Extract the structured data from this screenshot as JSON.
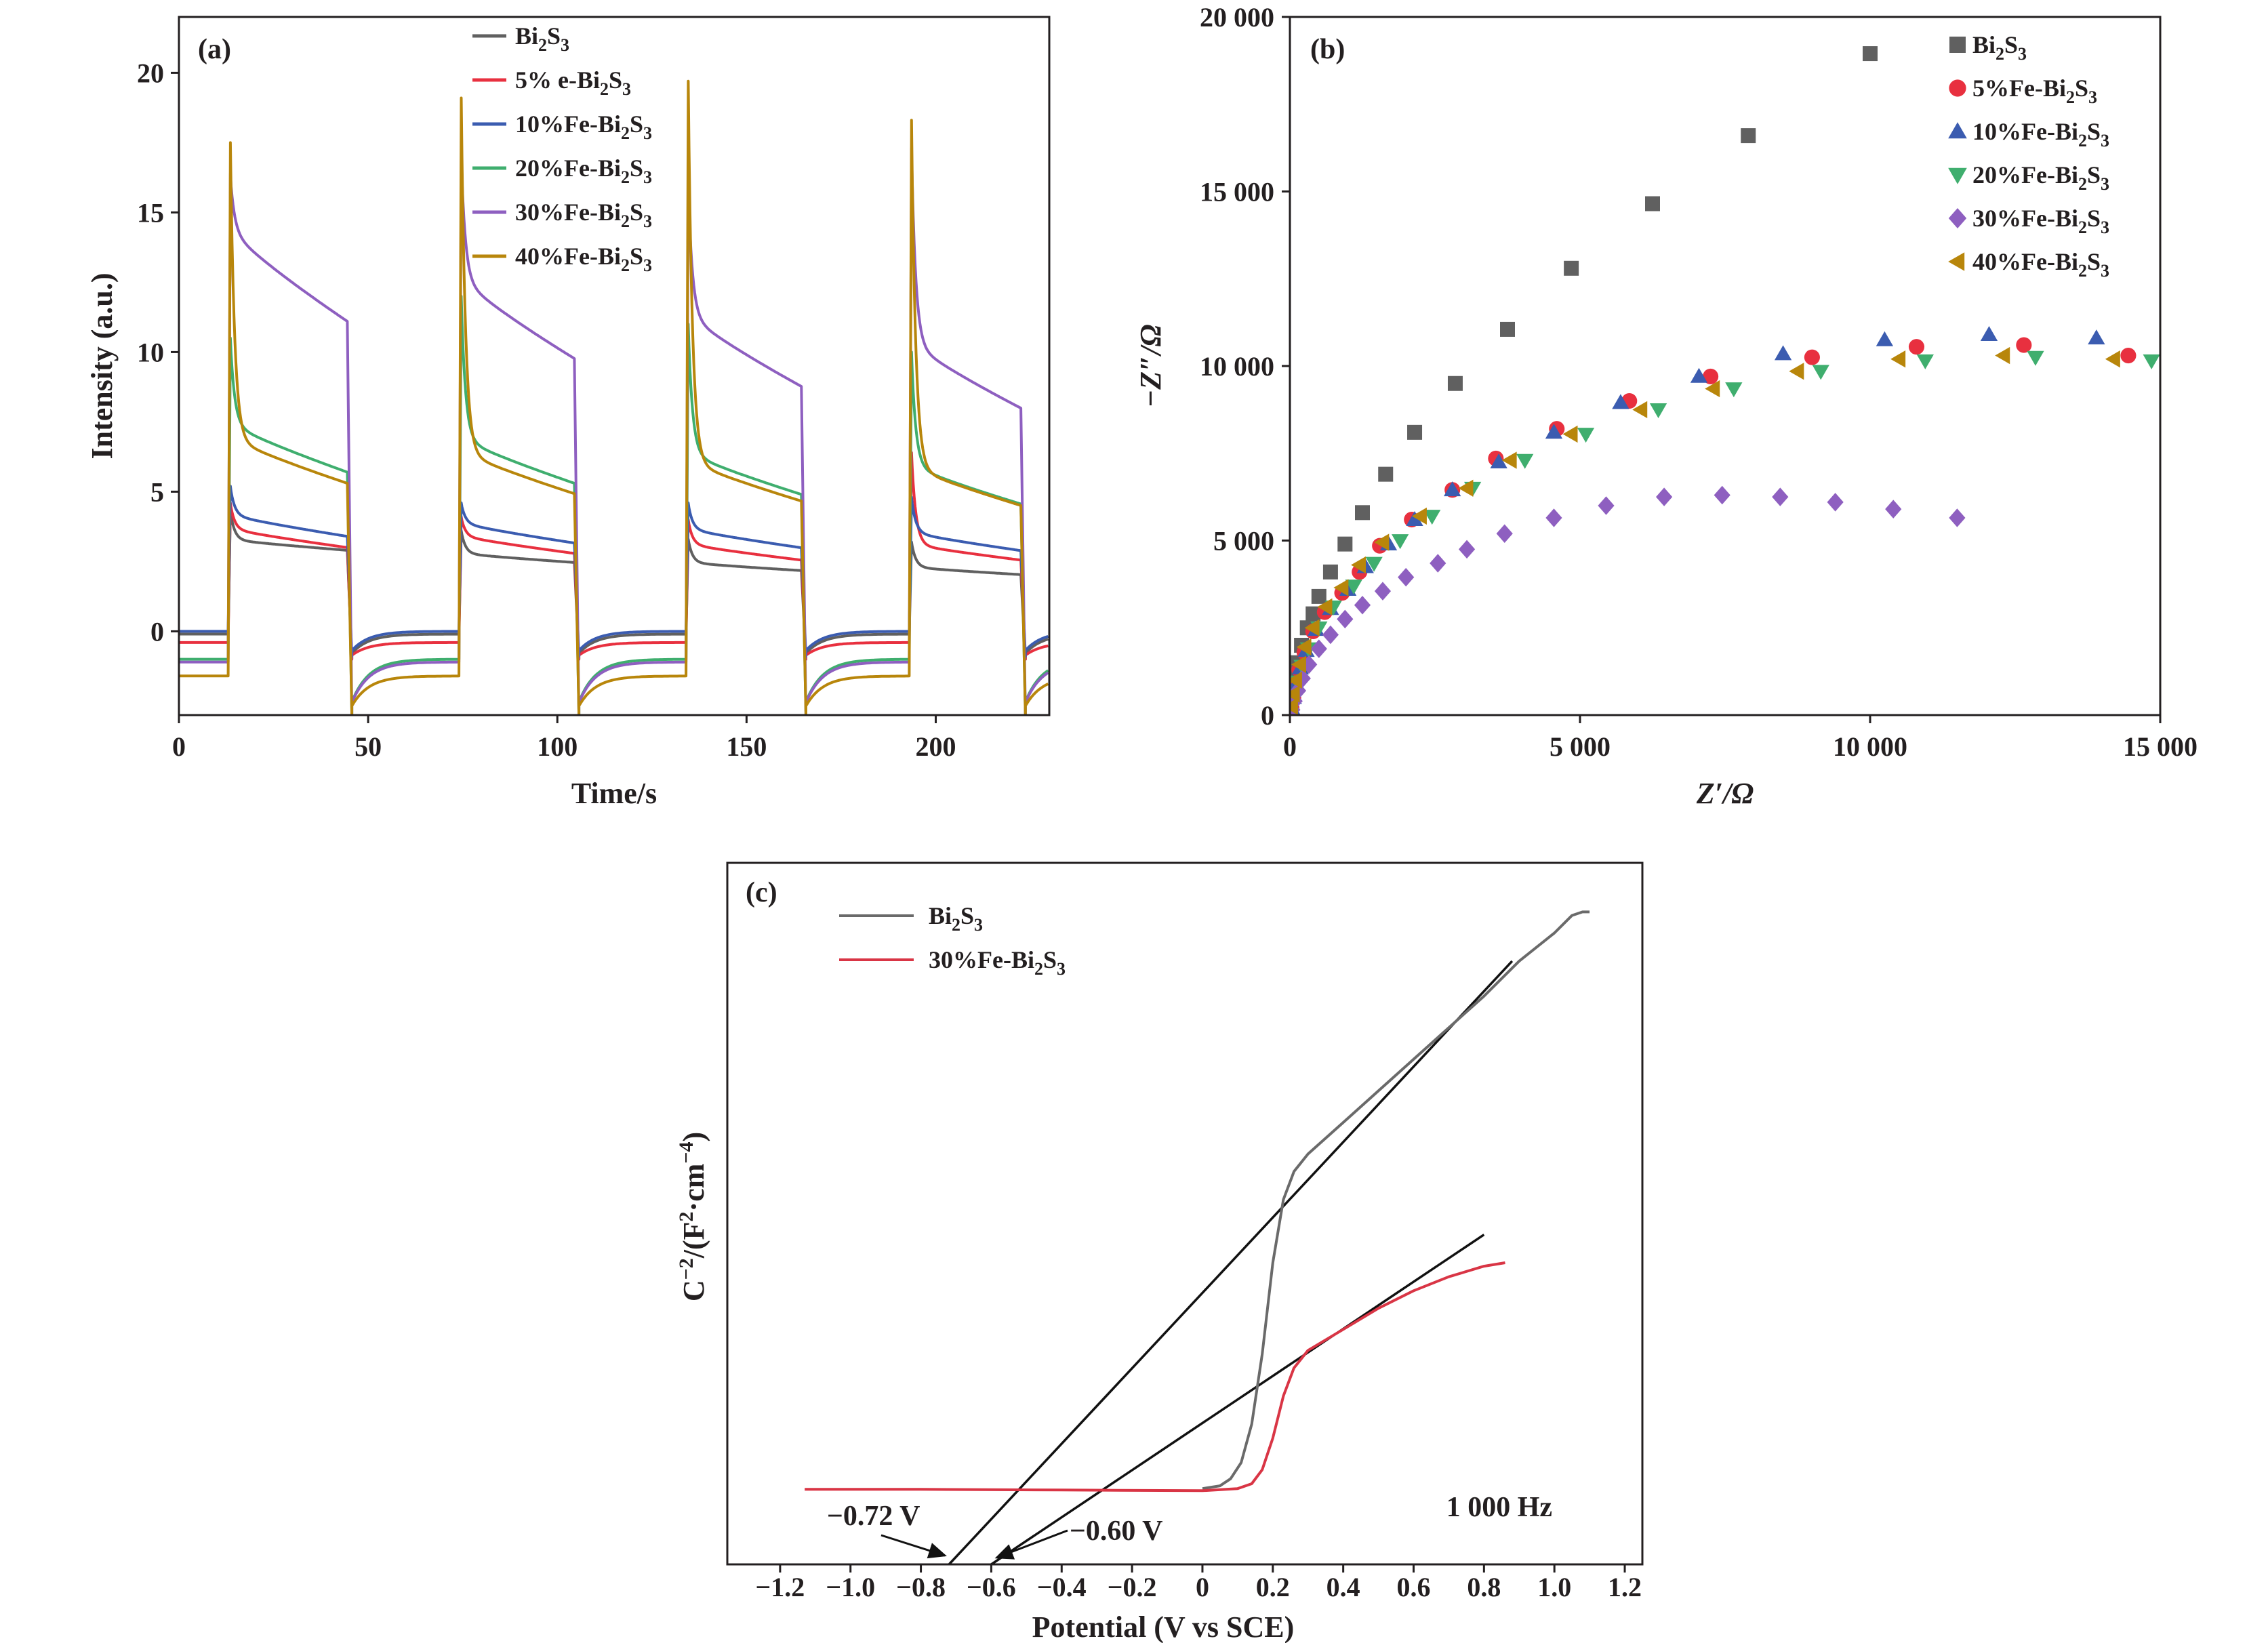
{
  "chart_data": [
    {
      "id": "a",
      "type": "line",
      "panel_label": "(a)",
      "xlabel": "Time/s",
      "ylabel": "Intensity (a.u.)",
      "xlim": [
        0,
        230
      ],
      "ylim": [
        -3,
        22
      ],
      "xticks": [
        0,
        50,
        100,
        150,
        200
      ],
      "yticks": [
        0,
        5,
        10,
        15,
        20
      ],
      "legend_position": "top-center",
      "light_on_times": [
        13,
        74,
        134,
        193
      ],
      "light_off_times": [
        44.5,
        104.5,
        164.5,
        222.5
      ],
      "series": [
        {
          "name": "Bi2S3",
          "legend": [
            "Bi",
            "2",
            "S",
            "3"
          ],
          "color": "#606060",
          "dark": -0.1,
          "peak": 4.3,
          "plateau_start": 3.3,
          "plateau_end": 2.9,
          "plateau_decay": 0.1,
          "after_off": -1.0
        },
        {
          "name": "5% e-Bi2S3",
          "legend": [
            "5% e-Bi",
            "2",
            "S",
            "3"
          ],
          "color": "#e8303f",
          "dark": -0.4,
          "peak": 4.6,
          "plateau_start": 3.7,
          "plateau_end": 3.0,
          "plateau_decay": 0.15,
          "after_off": -1.0
        },
        {
          "name": "10%Fe-Bi2S3",
          "legend": [
            "10%Fe-Bi",
            "2",
            "S",
            "3"
          ],
          "color": "#3b5cb0",
          "dark": 0.0,
          "peak": 5.2,
          "plateau_start": 4.2,
          "plateau_end": 3.4,
          "plateau_decay": 0.5,
          "after_off": -0.9
        },
        {
          "name": "20%Fe-Bi2S3",
          "legend": [
            "20%Fe-Bi",
            "2",
            "S",
            "3"
          ],
          "color": "#3fae6e",
          "dark": -1.0,
          "peak": 10.5,
          "plateau_start": 7.5,
          "plateau_end": 5.7,
          "plateau_decay": 0.5,
          "after_off": -3.0
        },
        {
          "name": "30%Fe-Bi2S3",
          "legend": [
            "30%Fe-Bi",
            "2",
            "S",
            "3"
          ],
          "color": "#8e5fc0",
          "dark": -1.1,
          "peak": 16.4,
          "plateau_start": 14.5,
          "plateau_end": 11.1,
          "plateau_decay": 0.6,
          "after_off": -3.0
        },
        {
          "name": "40%Fe-Bi2S3",
          "legend": [
            "40%Fe-Bi",
            "2",
            "S",
            "3"
          ],
          "color": "#b8860b",
          "dark": -1.6,
          "peak": 17.5,
          "plateau_start": 7.0,
          "plateau_end": 5.3,
          "plateau_decay": 0.4,
          "after_off": -3.0
        }
      ],
      "cycle_scale": {
        "Bi2S3": [
          1.0,
          0.85,
          0.75,
          0.7
        ],
        "5% e-Bi2S3": [
          1.0,
          0.93,
          0.85,
          0.85
        ],
        "10%Fe-Bi2S3": [
          1.0,
          0.93,
          0.88,
          0.85
        ],
        "20%Fe-Bi2S3": [
          1.0,
          0.93,
          0.86,
          0.8
        ],
        "30%Fe-Bi2S3": [
          1.0,
          0.88,
          0.79,
          0.72
        ],
        "40%Fe-Bi2S3": [
          1.0,
          0.93,
          0.88,
          0.85
        ]
      },
      "peaks": {
        "Bi2S3": [
          4.3,
          3.6,
          3.3,
          3.2
        ],
        "5% e-Bi2S3": [
          4.6,
          4.1,
          4.0,
          6.4
        ],
        "10%Fe-Bi2S3": [
          5.2,
          4.6,
          4.6,
          4.8
        ],
        "20%Fe-Bi2S3": [
          10.5,
          12.0,
          11.0,
          10.0
        ],
        "30%Fe-Bi2S3": [
          16.4,
          17.0,
          16.0,
          17.3
        ],
        "40%Fe-Bi2S3": [
          17.5,
          19.1,
          19.7,
          18.3
        ]
      }
    },
    {
      "id": "b",
      "type": "scatter",
      "panel_label": "(b)",
      "xlabel": "Z′/Ω",
      "ylabel": "−Z″/Ω",
      "xlim": [
        0,
        15000
      ],
      "ylim": [
        0,
        20000
      ],
      "xticks": [
        0,
        5000,
        10000,
        15000
      ],
      "xtick_labels": [
        "0",
        "5 000",
        "10 000",
        "15 000"
      ],
      "yticks": [
        0,
        5000,
        10000,
        15000,
        20000
      ],
      "ytick_labels": [
        "0",
        "5 000",
        "10 000",
        "15 000",
        "20 000"
      ],
      "legend_position": "top-right",
      "series": [
        {
          "name": "Bi2S3",
          "legend": [
            "Bi",
            "2",
            "S",
            "3"
          ],
          "color": "#606060",
          "marker": "square",
          "points": [
            [
              20,
              300
            ],
            [
              50,
              700
            ],
            [
              80,
              1100
            ],
            [
              130,
              1500
            ],
            [
              200,
              2000
            ],
            [
              300,
              2500
            ],
            [
              400,
              2900
            ],
            [
              500,
              3400
            ],
            [
              700,
              4100
            ],
            [
              950,
              4900
            ],
            [
              1250,
              5800
            ],
            [
              1650,
              6900
            ],
            [
              2150,
              8100
            ],
            [
              2850,
              9500
            ],
            [
              3750,
              11050
            ],
            [
              4850,
              12800
            ],
            [
              6250,
              14650
            ],
            [
              7900,
              16600
            ],
            [
              10000,
              18950
            ]
          ]
        },
        {
          "name": "5%Fe-Bi2S3",
          "legend": [
            "5%Fe-Bi",
            "2",
            "S",
            "3"
          ],
          "color": "#e8303f",
          "marker": "circle",
          "points": [
            [
              30,
              200
            ],
            [
              60,
              500
            ],
            [
              100,
              900
            ],
            [
              160,
              1300
            ],
            [
              250,
              1800
            ],
            [
              400,
              2400
            ],
            [
              600,
              2950
            ],
            [
              900,
              3500
            ],
            [
              1200,
              4100
            ],
            [
              1550,
              4850
            ],
            [
              2100,
              5600
            ],
            [
              2800,
              6450
            ],
            [
              3550,
              7350
            ],
            [
              4600,
              8200
            ],
            [
              5850,
              9000
            ],
            [
              7250,
              9700
            ],
            [
              9000,
              10250
            ],
            [
              10800,
              10550
            ],
            [
              12650,
              10600
            ],
            [
              14450,
              10300
            ]
          ]
        },
        {
          "name": "10%Fe-Bi2S3",
          "legend": [
            "10%Fe-Bi",
            "2",
            "S",
            "3"
          ],
          "color": "#3b5cb0",
          "marker": "triangle-up",
          "points": [
            [
              30,
              200
            ],
            [
              60,
              500
            ],
            [
              110,
              900
            ],
            [
              180,
              1350
            ],
            [
              280,
              1850
            ],
            [
              450,
              2450
            ],
            [
              700,
              3050
            ],
            [
              1000,
              3600
            ],
            [
              1300,
              4250
            ],
            [
              1700,
              4900
            ],
            [
              2150,
              5600
            ],
            [
              2800,
              6450
            ],
            [
              3600,
              7250
            ],
            [
              4550,
              8100
            ],
            [
              5700,
              8950
            ],
            [
              7050,
              9700
            ],
            [
              8500,
              10350
            ],
            [
              10250,
              10750
            ],
            [
              12050,
              10900
            ],
            [
              13900,
              10800
            ]
          ]
        },
        {
          "name": "20%Fe-Bi2S3",
          "legend": [
            "20%Fe-Bi",
            "2",
            "S",
            "3"
          ],
          "color": "#3fae6e",
          "marker": "triangle-down",
          "points": [
            [
              40,
              200
            ],
            [
              80,
              550
            ],
            [
              130,
              950
            ],
            [
              210,
              1400
            ],
            [
              320,
              1900
            ],
            [
              500,
              2500
            ],
            [
              750,
              3100
            ],
            [
              1100,
              3700
            ],
            [
              1450,
              4350
            ],
            [
              1900,
              5000
            ],
            [
              2450,
              5700
            ],
            [
              3150,
              6500
            ],
            [
              4050,
              7300
            ],
            [
              5100,
              8050
            ],
            [
              6350,
              8750
            ],
            [
              7650,
              9350
            ],
            [
              9150,
              9850
            ],
            [
              10950,
              10150
            ],
            [
              12850,
              10250
            ],
            [
              14850,
              10150
            ]
          ]
        },
        {
          "name": "30%Fe-Bi2S3",
          "legend": [
            "30%Fe-Bi",
            "2",
            "S",
            "3"
          ],
          "color": "#8e5fc0",
          "marker": "diamond",
          "points": [
            [
              40,
              150
            ],
            [
              80,
              400
            ],
            [
              140,
              700
            ],
            [
              220,
              1050
            ],
            [
              330,
              1450
            ],
            [
              500,
              1900
            ],
            [
              700,
              2300
            ],
            [
              950,
              2750
            ],
            [
              1250,
              3150
            ],
            [
              1600,
              3550
            ],
            [
              2000,
              3950
            ],
            [
              2550,
              4350
            ],
            [
              3050,
              4750
            ],
            [
              3700,
              5200
            ],
            [
              4550,
              5650
            ],
            [
              5450,
              6000
            ],
            [
              6450,
              6250
            ],
            [
              7450,
              6300
            ],
            [
              8450,
              6250
            ],
            [
              9400,
              6100
            ],
            [
              10400,
              5900
            ],
            [
              11500,
              5650
            ]
          ]
        },
        {
          "name": "40%Fe-Bi2S3",
          "legend": [
            "40%Fe-Bi",
            "2",
            "S",
            "3"
          ],
          "color": "#b8860b",
          "marker": "triangle-left",
          "points": [
            [
              30,
              250
            ],
            [
              60,
              600
            ],
            [
              100,
              1000
            ],
            [
              170,
              1450
            ],
            [
              260,
              1950
            ],
            [
              400,
              2500
            ],
            [
              620,
              3100
            ],
            [
              900,
              3650
            ],
            [
              1200,
              4300
            ],
            [
              1600,
              4950
            ],
            [
              2250,
              5700
            ],
            [
              3050,
              6500
            ],
            [
              3800,
              7300
            ],
            [
              4850,
              8050
            ],
            [
              6050,
              8750
            ],
            [
              7300,
              9350
            ],
            [
              8750,
              9850
            ],
            [
              10500,
              10200
            ],
            [
              12300,
              10300
            ],
            [
              14200,
              10200
            ]
          ]
        }
      ]
    },
    {
      "id": "c",
      "type": "line",
      "panel_label": "(c)",
      "xlabel": "Potential (V vs SCE)",
      "ylabel": "C⁻²/(F²·cm⁻⁴)",
      "xlim": [
        -1.35,
        1.25
      ],
      "ylim": [
        0,
        1
      ],
      "xticks": [
        -1.2,
        -1.0,
        -0.8,
        -0.6,
        -0.4,
        -0.2,
        0,
        0.2,
        0.4,
        0.6,
        0.8,
        1.0,
        1.2
      ],
      "xtick_labels": [
        "−1.2",
        "−1.0",
        "−0.8",
        "−0.6",
        "−0.4",
        "−0.2",
        "0",
        "0.2",
        "0.4",
        "0.6",
        "0.8",
        "1.0",
        "1.2"
      ],
      "legend_position": "top-left",
      "series": [
        {
          "name": "Bi2S3",
          "legend": [
            "Bi",
            "2",
            "S",
            "3"
          ],
          "color": "#6a6a6a",
          "points": [
            [
              0.0,
              0.108
            ],
            [
              0.05,
              0.112
            ],
            [
              0.08,
              0.122
            ],
            [
              0.11,
              0.145
            ],
            [
              0.14,
              0.2
            ],
            [
              0.17,
              0.3
            ],
            [
              0.2,
              0.43
            ],
            [
              0.23,
              0.52
            ],
            [
              0.26,
              0.56
            ],
            [
              0.3,
              0.585
            ],
            [
              0.4,
              0.63
            ],
            [
              0.5,
              0.675
            ],
            [
              0.6,
              0.72
            ],
            [
              0.7,
              0.765
            ],
            [
              0.8,
              0.81
            ],
            [
              0.9,
              0.86
            ],
            [
              1.0,
              0.9
            ],
            [
              1.05,
              0.925
            ],
            [
              1.08,
              0.93
            ],
            [
              1.1,
              0.93
            ]
          ]
        },
        {
          "name": "30%Fe-Bi2S3",
          "legend": [
            "30%Fe-Bi",
            "2",
            "S",
            "3"
          ],
          "color": "#d93545",
          "points": [
            [
              -1.13,
              0.107
            ],
            [
              -0.8,
              0.107
            ],
            [
              -0.4,
              0.106
            ],
            [
              0.0,
              0.105
            ],
            [
              0.1,
              0.108
            ],
            [
              0.14,
              0.115
            ],
            [
              0.17,
              0.135
            ],
            [
              0.2,
              0.18
            ],
            [
              0.23,
              0.24
            ],
            [
              0.26,
              0.28
            ],
            [
              0.3,
              0.305
            ],
            [
              0.4,
              0.335
            ],
            [
              0.5,
              0.365
            ],
            [
              0.6,
              0.39
            ],
            [
              0.7,
              0.41
            ],
            [
              0.8,
              0.425
            ],
            [
              0.86,
              0.43
            ]
          ]
        }
      ],
      "fit_lines": [
        {
          "from": [
            -0.72,
            0
          ],
          "to": [
            0.88,
            0.86
          ]
        },
        {
          "from": [
            -0.6,
            0
          ],
          "to": [
            0.8,
            0.47
          ]
        }
      ],
      "annotations": [
        {
          "text": "−0.72 V",
          "arrow_to": -0.72
        },
        {
          "text": "−0.60 V",
          "arrow_to": -0.6
        }
      ],
      "frequency_label": "1 000 Hz"
    }
  ]
}
